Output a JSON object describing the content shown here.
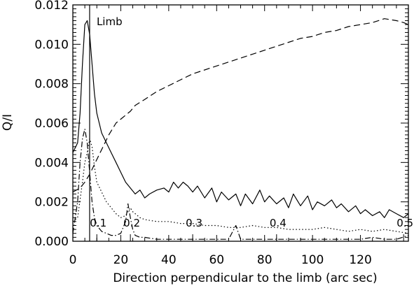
{
  "chart_data": {
    "type": "line",
    "title": "",
    "xlabel": "Direction perpendicular to the limb (arc sec)",
    "ylabel": "Q/I",
    "xlim": [
      0,
      140
    ],
    "ylim": [
      0,
      0.012
    ],
    "x_ticks": [
      0,
      20,
      40,
      60,
      80,
      100,
      120
    ],
    "x_tick_labels": [
      "0",
      "20",
      "40",
      "60",
      "80",
      "100",
      "120"
    ],
    "y_ticks": [
      0,
      0.002,
      0.004,
      0.006,
      0.008,
      0.01,
      0.012
    ],
    "y_tick_labels": [
      "0.000",
      "0.002",
      "0.004",
      "0.006",
      "0.008",
      "0.010",
      "0.012"
    ],
    "grid": false,
    "legend": "none",
    "vertical_marker": {
      "x": 7,
      "label": "Limb"
    },
    "annotations": [
      {
        "x": 10,
        "label": "0.1"
      },
      {
        "x": 24,
        "label": "0.2"
      },
      {
        "x": 50,
        "label": "0.3"
      },
      {
        "x": 85,
        "label": "0.4"
      },
      {
        "x": 138,
        "label": "0.5"
      }
    ],
    "series": [
      {
        "style": "solid",
        "x": [
          0,
          2,
          3,
          4,
          5,
          6,
          7,
          8,
          9,
          10,
          12,
          14,
          16,
          18,
          20,
          22,
          24,
          26,
          28,
          30,
          32,
          35,
          38,
          40,
          42,
          44,
          46,
          48,
          50,
          52,
          55,
          58,
          60,
          62,
          65,
          68,
          70,
          72,
          75,
          78,
          80,
          82,
          85,
          88,
          90,
          92,
          95,
          98,
          100,
          102,
          105,
          108,
          110,
          112,
          115,
          118,
          120,
          122,
          125,
          128,
          130,
          132,
          135,
          138,
          140
        ],
        "y": [
          0.0045,
          0.005,
          0.0065,
          0.009,
          0.011,
          0.0112,
          0.0105,
          0.009,
          0.0075,
          0.0065,
          0.0055,
          0.005,
          0.0045,
          0.004,
          0.0035,
          0.003,
          0.0027,
          0.0024,
          0.0026,
          0.0022,
          0.0024,
          0.0026,
          0.0027,
          0.0025,
          0.003,
          0.0027,
          0.003,
          0.0028,
          0.0025,
          0.0028,
          0.0022,
          0.0027,
          0.002,
          0.0025,
          0.0021,
          0.0024,
          0.0018,
          0.0024,
          0.0019,
          0.0026,
          0.002,
          0.0023,
          0.0019,
          0.0022,
          0.0017,
          0.0024,
          0.0018,
          0.0023,
          0.0016,
          0.002,
          0.0018,
          0.0021,
          0.0017,
          0.0019,
          0.0015,
          0.0018,
          0.0014,
          0.0016,
          0.0013,
          0.0015,
          0.0012,
          0.0016,
          0.0014,
          0.0012,
          0.0014
        ]
      },
      {
        "style": "dashed",
        "x": [
          0,
          3,
          5,
          7,
          9,
          11,
          13,
          15,
          18,
          20,
          22,
          24,
          26,
          30,
          35,
          40,
          45,
          50,
          55,
          60,
          65,
          70,
          75,
          80,
          85,
          90,
          95,
          100,
          105,
          110,
          115,
          120,
          125,
          130,
          135,
          138,
          140
        ],
        "y": [
          0.0025,
          0.0027,
          0.003,
          0.0034,
          0.0039,
          0.0044,
          0.0049,
          0.0054,
          0.006,
          0.0062,
          0.0064,
          0.0066,
          0.0069,
          0.0072,
          0.0076,
          0.0079,
          0.0082,
          0.0085,
          0.0087,
          0.0089,
          0.0091,
          0.0093,
          0.0095,
          0.0097,
          0.0099,
          0.0101,
          0.0103,
          0.0104,
          0.0106,
          0.0107,
          0.0109,
          0.011,
          0.0111,
          0.0113,
          0.0112,
          0.0111,
          0.011
        ]
      },
      {
        "style": "dotted",
        "x": [
          0,
          2,
          4,
          5,
          6,
          7,
          8,
          9,
          10,
          12,
          14,
          16,
          18,
          20,
          22,
          24,
          25,
          26,
          28,
          30,
          35,
          40,
          45,
          50,
          55,
          60,
          65,
          70,
          75,
          80,
          85,
          90,
          95,
          100,
          105,
          110,
          115,
          120,
          125,
          130,
          135,
          140
        ],
        "y": [
          0.001,
          0.0012,
          0.003,
          0.004,
          0.0045,
          0.0052,
          0.0048,
          0.0038,
          0.003,
          0.0025,
          0.002,
          0.0017,
          0.0014,
          0.0012,
          0.0013,
          0.0017,
          0.0015,
          0.0014,
          0.0012,
          0.0011,
          0.001,
          0.001,
          0.0009,
          0.0009,
          0.0008,
          0.0008,
          0.0007,
          0.0007,
          0.0008,
          0.0007,
          0.0007,
          0.0006,
          0.0006,
          0.0006,
          0.0007,
          0.0006,
          0.0005,
          0.0006,
          0.0005,
          0.0006,
          0.0005,
          0.0004
        ]
      },
      {
        "style": "dash-dot",
        "x": [
          0,
          2,
          3,
          4,
          5,
          6,
          7,
          8,
          9,
          10,
          12,
          14,
          16,
          18,
          20,
          22,
          23,
          24,
          25,
          26,
          28,
          30,
          35,
          40,
          45,
          50,
          55,
          60,
          65,
          68,
          70,
          75,
          80,
          85,
          90,
          95,
          100,
          105,
          110,
          115,
          120,
          125,
          130,
          135,
          140
        ],
        "y": [
          0.0004,
          0.002,
          0.004,
          0.0052,
          0.0057,
          0.005,
          0.0035,
          0.002,
          0.0012,
          0.0008,
          0.0005,
          0.0004,
          0.0003,
          0.0003,
          0.0004,
          0.001,
          0.0019,
          0.0012,
          0.0006,
          0.0003,
          0.0002,
          0.0002,
          0.0001,
          0.0001,
          0.0001,
          0.0001,
          0.0001,
          0.0001,
          0.0001,
          0.0008,
          0.0001,
          0.0001,
          0.0001,
          0.0001,
          0.0001,
          0.0001,
          0.0001,
          0.0001,
          0.0001,
          0.0001,
          0.0001,
          0.0002,
          0.0001,
          0.0001,
          0.0003
        ]
      }
    ]
  }
}
